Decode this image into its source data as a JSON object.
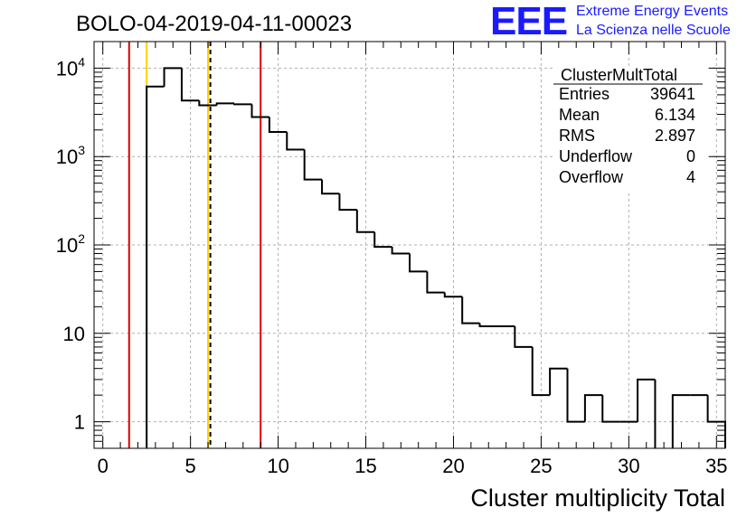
{
  "header": {
    "run_title": "BOLO-04-2019-04-11-00023",
    "logo_text": "EEE",
    "logo_line1": "Extreme Energy Events",
    "logo_line2": "La Scienza nelle Scuole",
    "logo_color": "#1a1aff"
  },
  "stats_box": {
    "title": "ClusterMultTotal",
    "rows": [
      {
        "label": "Entries",
        "value": "39641"
      },
      {
        "label": "Mean",
        "value": "6.134"
      },
      {
        "label": "RMS",
        "value": "2.897"
      },
      {
        "label": "Underflow",
        "value": "0"
      },
      {
        "label": "Overflow",
        "value": "4"
      }
    ]
  },
  "chart_data": {
    "type": "histogram",
    "xlabel": "Cluster multiplicity Total",
    "ylabel": "",
    "xlim": [
      -0.5,
      35.5
    ],
    "ylim": [
      0.5,
      20000
    ],
    "yscale": "log",
    "grid": true,
    "bin_width": 1,
    "bin_start": -0.5,
    "values": [
      0,
      0,
      0,
      6200,
      10000,
      4300,
      3800,
      4000,
      3900,
      2800,
      1900,
      1200,
      550,
      380,
      250,
      140,
      95,
      80,
      50,
      29,
      26,
      13,
      12,
      12,
      7,
      2,
      4,
      1,
      2,
      1,
      1,
      3,
      0,
      2,
      2,
      1
    ],
    "xticks": [
      0,
      5,
      10,
      15,
      20,
      25,
      30,
      35
    ],
    "xtick_labels": [
      "0",
      "5",
      "10",
      "15",
      "20",
      "25",
      "30",
      "35"
    ],
    "yticks": [
      1,
      10,
      100,
      1000,
      10000
    ],
    "ytick_labels": [
      {
        "base": "1",
        "exp": ""
      },
      {
        "base": "10",
        "exp": ""
      },
      {
        "base": "10",
        "exp": "2"
      },
      {
        "base": "10",
        "exp": "3"
      },
      {
        "base": "10",
        "exp": "4"
      }
    ],
    "vertical_lines": [
      {
        "x": 1.5,
        "color": "#e00000",
        "style": "solid"
      },
      {
        "x": 2.5,
        "color": "#ffd000",
        "style": "solid"
      },
      {
        "x": 6.0,
        "color": "#ffd000",
        "style": "solid"
      },
      {
        "x": 6.134,
        "color": "#000000",
        "style": "dashed"
      },
      {
        "x": 9.0,
        "color": "#e00000",
        "style": "solid"
      }
    ]
  }
}
